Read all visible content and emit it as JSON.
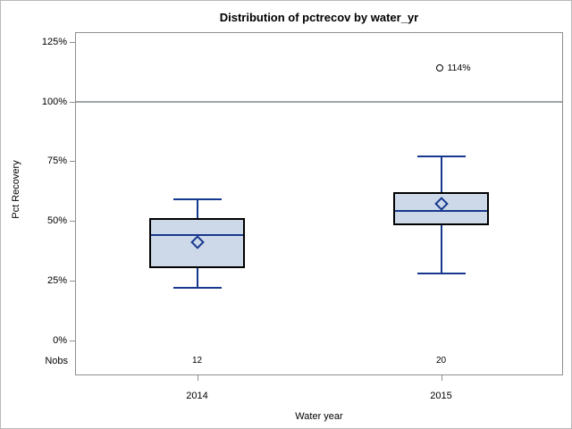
{
  "chart_data": {
    "type": "box",
    "title": "Distribution of pctrecov by water_yr",
    "xlabel": "Water year",
    "ylabel": "Pct Recovery",
    "nobs_row_label": "Nobs",
    "y_axis": {
      "min": 0,
      "max": 125,
      "tick_step": 25,
      "tick_labels": [
        "0%",
        "25%",
        "50%",
        "75%",
        "100%",
        "125%"
      ],
      "grid": false
    },
    "reference_line": {
      "value": 100
    },
    "legend_position": "none",
    "categories": [
      "2014",
      "2015"
    ],
    "groups": [
      {
        "category": "2014",
        "nobs": "12",
        "whisker_low": 22,
        "q1": 30,
        "median": 44,
        "mean": 41,
        "q3": 51,
        "whisker_high": 59,
        "outliers": []
      },
      {
        "category": "2015",
        "nobs": "20",
        "whisker_low": 28,
        "q1": 48,
        "median": 54,
        "mean": 57,
        "q3": 62,
        "whisker_high": 77,
        "outliers": [
          {
            "value": 114,
            "label": "114%"
          }
        ]
      }
    ],
    "style": {
      "box_fill": "#cdd8e8",
      "box_border": "#000000",
      "line_color": "#16388e",
      "reference_line_color": "#a0a5a8",
      "axis_color": "#8f8f8f",
      "outlier_color": "#000000",
      "text_color": "#000000"
    }
  }
}
